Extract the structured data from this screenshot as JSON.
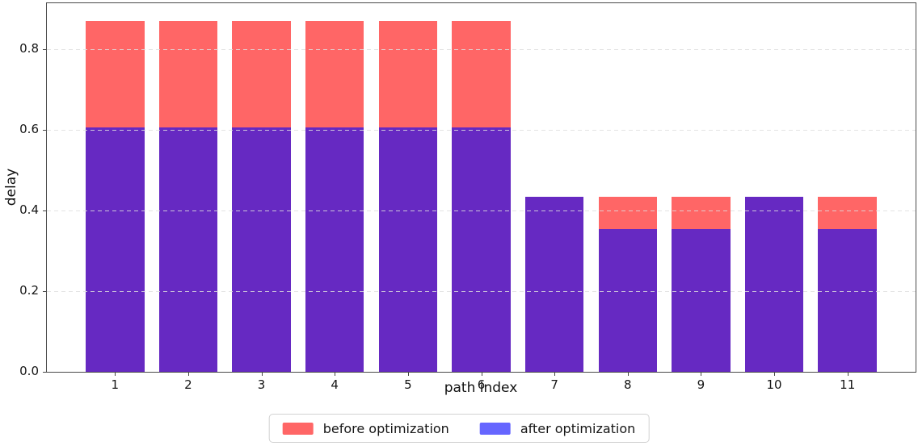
{
  "chart_data": {
    "type": "bar",
    "variant": "overlay",
    "title": "",
    "xlabel": "path index",
    "ylabel": "delay",
    "categories": [
      "1",
      "2",
      "3",
      "4",
      "5",
      "6",
      "7",
      "8",
      "9",
      "10",
      "11"
    ],
    "series": [
      {
        "name": "before optimization",
        "legend_color": "#FF6666",
        "bar_color": "#FF6666",
        "values": [
          0.87,
          0.87,
          0.87,
          0.87,
          0.87,
          0.87,
          0.435,
          0.435,
          0.435,
          0.435,
          0.435
        ]
      },
      {
        "name": "after optimization",
        "legend_color": "#6666FF",
        "bar_color": "#6629C2",
        "values": [
          0.607,
          0.607,
          0.607,
          0.607,
          0.607,
          0.607,
          0.435,
          0.355,
          0.355,
          0.435,
          0.355
        ]
      }
    ],
    "yticks": [
      {
        "label": "0.0",
        "value": 0.0
      },
      {
        "label": "0.2",
        "value": 0.2
      },
      {
        "label": "0.4",
        "value": 0.4
      },
      {
        "label": "0.6",
        "value": 0.6
      },
      {
        "label": "0.8",
        "value": 0.8
      }
    ],
    "ylim": [
      0,
      0.914
    ],
    "grid": "horizontal-dashed-above-bars",
    "legend_position": "bottom-center",
    "frame": true
  }
}
